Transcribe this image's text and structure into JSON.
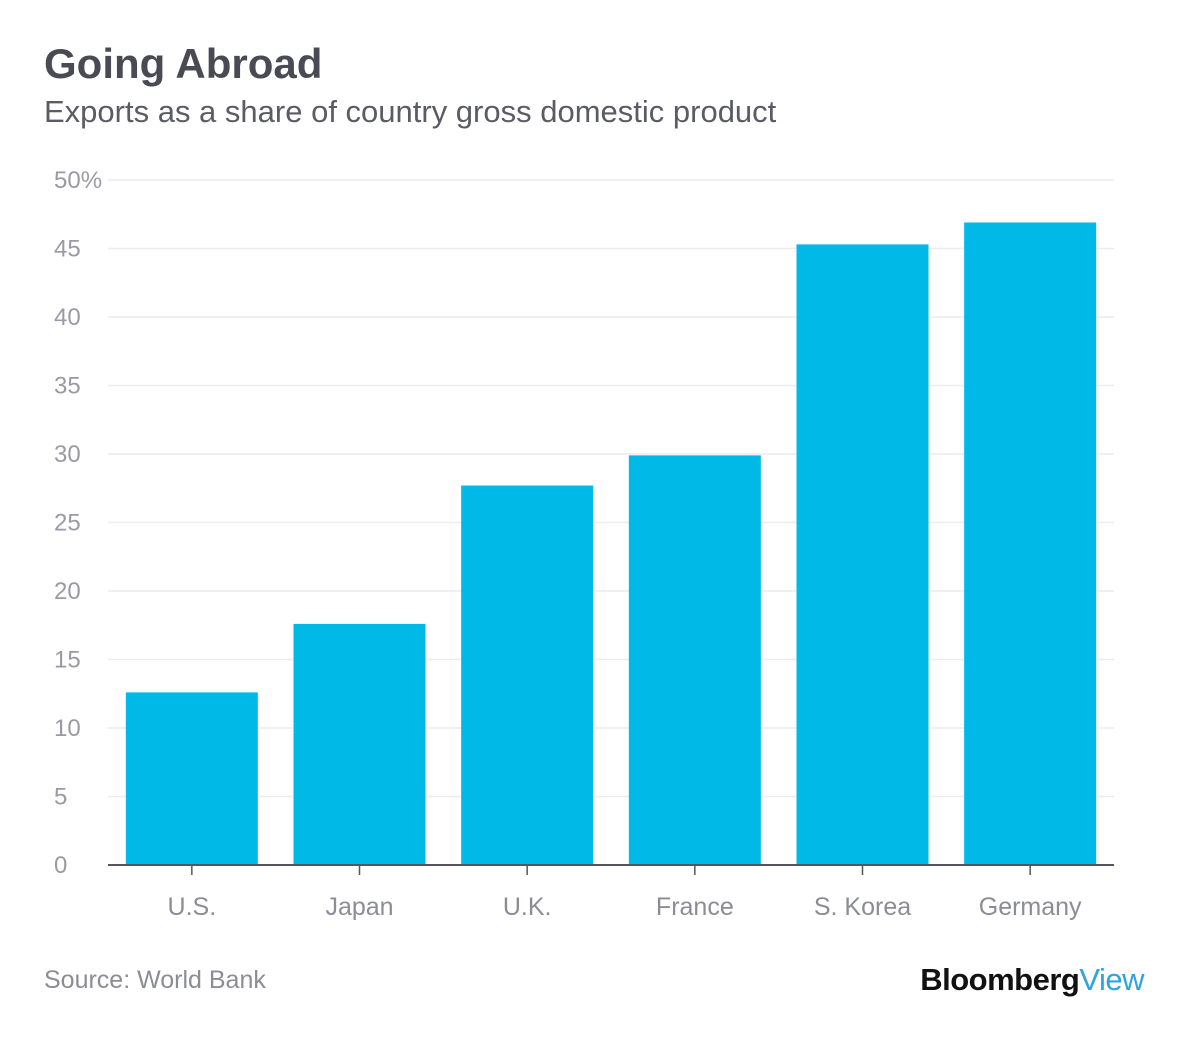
{
  "chart_data": {
    "type": "bar",
    "title": "Going Abroad",
    "subtitle": "Exports as a share of country gross domestic product",
    "categories": [
      "U.S.",
      "Japan",
      "U.K.",
      "France",
      "S. Korea",
      "Germany"
    ],
    "values": [
      12.6,
      17.6,
      27.7,
      29.9,
      45.3,
      46.9
    ],
    "ylim": [
      0,
      50
    ],
    "yticks": [
      "0",
      "5",
      "10",
      "15",
      "20",
      "25",
      "30",
      "35",
      "40",
      "45",
      "50%"
    ],
    "xlabel": "",
    "ylabel": "",
    "grid": true,
    "bar_color": "#00b9e6"
  },
  "footer": {
    "source": "Source: World Bank",
    "brand_primary": "Bloomberg",
    "brand_secondary": "View"
  },
  "colors": {
    "axis": "#555560",
    "grid": "#ececf0"
  }
}
